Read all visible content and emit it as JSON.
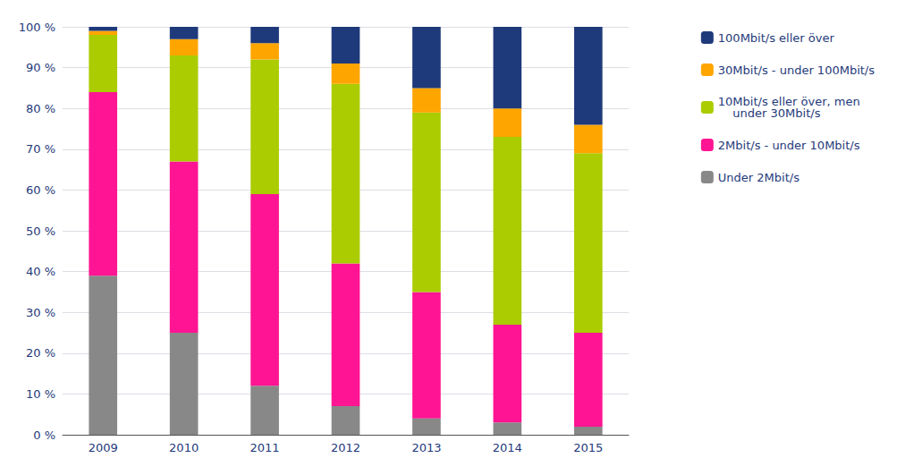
{
  "chart_data": {
    "type": "bar",
    "stacked": true,
    "categories": [
      "2009",
      "2010",
      "2011",
      "2012",
      "2013",
      "2014",
      "2015"
    ],
    "series": [
      {
        "name": "Under 2Mbit/s",
        "color": "#888888",
        "values": [
          39,
          25,
          12,
          7,
          4,
          3,
          2
        ]
      },
      {
        "name": "2Mbit/s - under 10Mbit/s",
        "color": "#FF1493",
        "values": [
          45,
          42,
          47,
          35,
          31,
          24,
          23
        ]
      },
      {
        "name": "10Mbit/s eller över, men\n    under 30Mbit/s",
        "color": "#AACC00",
        "values": [
          14,
          26,
          33,
          44,
          44,
          46,
          44
        ]
      },
      {
        "name": "30Mbit/s - under 100Mbit/s",
        "color": "#FFA500",
        "values": [
          1,
          4,
          4,
          5,
          6,
          7,
          7
        ]
      },
      {
        "name": "100Mbit/s eller över",
        "color": "#1F3A7A",
        "values": [
          1,
          3,
          4,
          9,
          15,
          20,
          24
        ]
      }
    ],
    "ylim": [
      0,
      100
    ],
    "yticks": [
      {
        "value": 0,
        "label": "0 %"
      },
      {
        "value": 10,
        "label": "10 %"
      },
      {
        "value": 20,
        "label": "20 %"
      },
      {
        "value": 30,
        "label": "30 %"
      },
      {
        "value": 40,
        "label": "40 %"
      },
      {
        "value": 50,
        "label": "50 %"
      },
      {
        "value": 60,
        "label": "60 %"
      },
      {
        "value": 70,
        "label": "70 %"
      },
      {
        "value": 80,
        "label": "80 %"
      },
      {
        "value": 90,
        "label": "90 %"
      },
      {
        "value": 100,
        "label": "100 %"
      }
    ],
    "grid": true,
    "legend": "right"
  }
}
